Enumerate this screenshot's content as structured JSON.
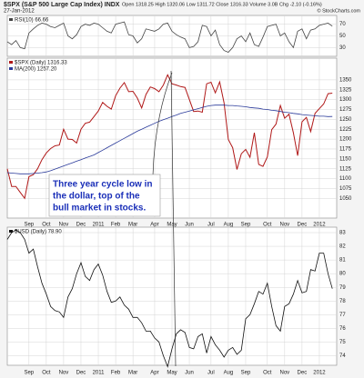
{
  "header": {
    "title": "$SPX (S&P 500 Large Cap Index) INDX",
    "date": "27-Jan-2012",
    "quote": "Open 1318.25  High 1320.06  Low 1311.72  Close 1316.33  Volume 3.0B  Chg -2.10 (-0.16%)",
    "credit": "© StockCharts.com"
  },
  "chart_data": [
    {
      "type": "line",
      "legend": "RSI(10) 66.66",
      "ylim": [
        15,
        85
      ],
      "yticks": [
        30,
        50,
        70
      ],
      "xlim": [
        0,
        76
      ],
      "x": [
        0,
        1,
        2,
        3,
        4,
        5,
        6,
        7,
        8,
        9,
        10,
        11,
        12,
        13,
        14,
        15,
        16,
        17,
        18,
        19,
        20,
        21,
        22,
        23,
        24,
        25,
        26,
        27,
        28,
        29,
        30,
        31,
        32,
        33,
        34,
        35,
        36,
        37,
        38,
        39,
        40,
        41,
        42,
        43,
        44,
        45,
        46,
        47,
        48,
        49,
        50,
        51,
        52,
        53,
        54,
        55,
        56,
        57,
        58,
        59,
        60,
        61,
        62,
        63,
        64,
        65,
        66,
        67,
        68,
        69,
        70,
        71,
        72,
        73,
        74,
        75
      ],
      "series": [
        {
          "name": "RSI(10)",
          "color": "#444444",
          "values": [
            40,
            35,
            42,
            30,
            28,
            55,
            62,
            68,
            72,
            70,
            66,
            64,
            68,
            72,
            50,
            45,
            52,
            66,
            70,
            68,
            72,
            70,
            64,
            58,
            55,
            70,
            72,
            74,
            52,
            50,
            38,
            45,
            62,
            60,
            58,
            62,
            70,
            72,
            58,
            52,
            48,
            45,
            30,
            32,
            40,
            68,
            66,
            50,
            60,
            35,
            25,
            22,
            30,
            45,
            50,
            40,
            55,
            35,
            32,
            48,
            66,
            68,
            70,
            50,
            55,
            40,
            30,
            58,
            62,
            45,
            60,
            62,
            68,
            70,
            72,
            66.66
          ]
        }
      ]
    },
    {
      "type": "line",
      "legend": "$SPX (Daily) 1316.33",
      "legend2": "MA(200) 1257.20",
      "ylim": [
        1000,
        1405
      ],
      "yticks": [
        1050,
        1075,
        1100,
        1125,
        1150,
        1175,
        1200,
        1225,
        1250,
        1275,
        1300,
        1325,
        1350
      ],
      "xlim": [
        0,
        76
      ],
      "xticks": [
        {
          "value": 5,
          "label": "Sep"
        },
        {
          "value": 9,
          "label": "Oct"
        },
        {
          "value": 13,
          "label": "Nov"
        },
        {
          "value": 17,
          "label": "Dec"
        },
        {
          "value": 21,
          "label": "2011"
        },
        {
          "value": 25,
          "label": "Feb"
        },
        {
          "value": 29,
          "label": "Mar"
        },
        {
          "value": 34,
          "label": "Apr"
        },
        {
          "value": 38,
          "label": "May"
        },
        {
          "value": 42,
          "label": "Jun"
        },
        {
          "value": 47,
          "label": "Jul"
        },
        {
          "value": 51,
          "label": "Aug"
        },
        {
          "value": 55,
          "label": "Sep"
        },
        {
          "value": 60,
          "label": "Oct"
        },
        {
          "value": 64,
          "label": "Nov"
        },
        {
          "value": 68,
          "label": "Dec"
        },
        {
          "value": 72,
          "label": "2012"
        }
      ],
      "x": [
        0,
        1,
        2,
        3,
        4,
        5,
        6,
        7,
        8,
        9,
        10,
        11,
        12,
        13,
        14,
        15,
        16,
        17,
        18,
        19,
        20,
        21,
        22,
        23,
        24,
        25,
        26,
        27,
        28,
        29,
        30,
        31,
        32,
        33,
        34,
        35,
        36,
        37,
        38,
        39,
        40,
        41,
        42,
        43,
        44,
        45,
        46,
        47,
        48,
        49,
        50,
        51,
        52,
        53,
        54,
        55,
        56,
        57,
        58,
        59,
        60,
        61,
        62,
        63,
        64,
        65,
        66,
        67,
        68,
        69,
        70,
        71,
        72,
        73,
        74,
        75
      ],
      "annotation": [
        "Three year cycle low in",
        "the dollar, top of the",
        "bull market in stocks."
      ],
      "series": [
        {
          "name": "$SPX",
          "color": "#b01818",
          "values": [
            1125,
            1080,
            1080,
            1065,
            1050,
            1105,
            1110,
            1125,
            1148,
            1165,
            1176,
            1183,
            1185,
            1225,
            1200,
            1199,
            1190,
            1225,
            1240,
            1243,
            1257,
            1271,
            1293,
            1283,
            1276,
            1310,
            1329,
            1343,
            1320,
            1321,
            1304,
            1279,
            1313,
            1332,
            1328,
            1320,
            1337,
            1363,
            1340,
            1337,
            1333,
            1331,
            1300,
            1270,
            1271,
            1268,
            1340,
            1344,
            1317,
            1345,
            1292,
            1199,
            1178,
            1123,
            1163,
            1174,
            1154,
            1216,
            1136,
            1131,
            1155,
            1224,
            1238,
            1285,
            1253,
            1263,
            1216,
            1158,
            1244,
            1255,
            1219,
            1265,
            1277,
            1289,
            1315,
            1316.33
          ]
        },
        {
          "name": "MA(200)",
          "color": "#2a3a9a",
          "values": [
            1115,
            1114,
            1113,
            1112,
            1112,
            1112,
            1113,
            1114,
            1115,
            1117,
            1120,
            1124,
            1128,
            1132,
            1136,
            1140,
            1144,
            1148,
            1152,
            1156,
            1160,
            1166,
            1172,
            1178,
            1184,
            1190,
            1196,
            1202,
            1208,
            1214,
            1220,
            1225,
            1230,
            1235,
            1240,
            1245,
            1249,
            1253,
            1257,
            1261,
            1265,
            1268,
            1271,
            1274,
            1277,
            1280,
            1283,
            1285,
            1286,
            1286,
            1286,
            1285,
            1285,
            1284,
            1283,
            1282,
            1280,
            1279,
            1278,
            1276,
            1275,
            1273,
            1272,
            1270,
            1268,
            1267,
            1265,
            1264,
            1262,
            1261,
            1260,
            1259,
            1258,
            1258,
            1257,
            1257.2
          ]
        }
      ]
    },
    {
      "type": "line",
      "legend": "$USD (Daily) 78.90",
      "ylim": [
        73.3,
        83.4
      ],
      "yticks": [
        74,
        75,
        76,
        77,
        78,
        79,
        80,
        81,
        82,
        83
      ],
      "xlim": [
        0,
        76
      ],
      "xticks": [
        {
          "value": 5,
          "label": "Sep"
        },
        {
          "value": 9,
          "label": "Oct"
        },
        {
          "value": 13,
          "label": "Nov"
        },
        {
          "value": 17,
          "label": "Dec"
        },
        {
          "value": 21,
          "label": "2011"
        },
        {
          "value": 25,
          "label": "Feb"
        },
        {
          "value": 29,
          "label": "Mar"
        },
        {
          "value": 34,
          "label": "Apr"
        },
        {
          "value": 38,
          "label": "May"
        },
        {
          "value": 42,
          "label": "Jun"
        },
        {
          "value": 47,
          "label": "Jul"
        },
        {
          "value": 51,
          "label": "Aug"
        },
        {
          "value": 55,
          "label": "Sep"
        },
        {
          "value": 60,
          "label": "Oct"
        },
        {
          "value": 64,
          "label": "Nov"
        },
        {
          "value": 68,
          "label": "Dec"
        },
        {
          "value": 72,
          "label": "2012"
        }
      ],
      "x": [
        0,
        1,
        2,
        3,
        4,
        5,
        6,
        7,
        8,
        9,
        10,
        11,
        12,
        13,
        14,
        15,
        16,
        17,
        18,
        19,
        20,
        21,
        22,
        23,
        24,
        25,
        26,
        27,
        28,
        29,
        30,
        31,
        32,
        33,
        34,
        35,
        36,
        37,
        38,
        39,
        40,
        41,
        42,
        43,
        44,
        45,
        46,
        47,
        48,
        49,
        50,
        51,
        52,
        53,
        54,
        55,
        56,
        57,
        58,
        59,
        60,
        61,
        62,
        63,
        64,
        65,
        66,
        67,
        68,
        69,
        70,
        71,
        72,
        73,
        74,
        75
      ],
      "series": [
        {
          "name": "$USD",
          "color": "#111111",
          "values": [
            82.5,
            83,
            83.2,
            83,
            82.5,
            81.5,
            81.8,
            80.5,
            79.3,
            78.5,
            77.6,
            77.3,
            77.2,
            76.8,
            78.3,
            78.9,
            80,
            80.8,
            79.8,
            79.5,
            80.3,
            80.7,
            79.9,
            78.7,
            77.9,
            78,
            78.3,
            77.7,
            77.4,
            76.8,
            76.8,
            76.4,
            75.8,
            75.8,
            75.3,
            75,
            74,
            73.2,
            74.5,
            75.6,
            75.9,
            75.7,
            74.6,
            74.5,
            75.4,
            75.6,
            74.2,
            75.4,
            74.8,
            74.4,
            73.9,
            74.4,
            74.6,
            74.1,
            74.4,
            76.7,
            77,
            77.8,
            78.7,
            78.5,
            79.3,
            77.6,
            76.2,
            75.8,
            77.6,
            77.8,
            78.5,
            79.5,
            78.6,
            78.7,
            80.3,
            80.2,
            81.5,
            81.5,
            80,
            78.9
          ]
        }
      ]
    }
  ]
}
